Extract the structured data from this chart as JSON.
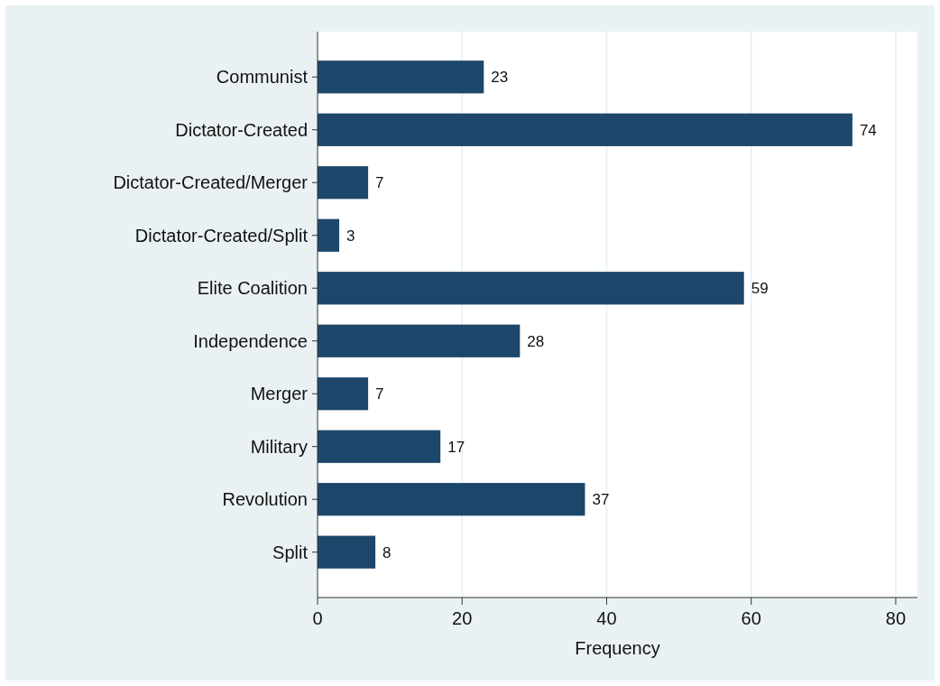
{
  "chart_data": {
    "type": "bar",
    "orientation": "horizontal",
    "xlabel": "Frequency",
    "categories": [
      "Communist",
      "Dictator-Created",
      "Dictator-Created/Merger",
      "Dictator-Created/Split",
      "Elite Coalition",
      "Independence",
      "Merger",
      "Military",
      "Revolution",
      "Split"
    ],
    "values": [
      23,
      74,
      7,
      3,
      59,
      28,
      7,
      17,
      37,
      8
    ],
    "color": "#1c476b",
    "xlim": [
      0,
      83
    ],
    "xticks": [
      0,
      20,
      40,
      60,
      80
    ],
    "grid": "x",
    "data_labels": true
  }
}
